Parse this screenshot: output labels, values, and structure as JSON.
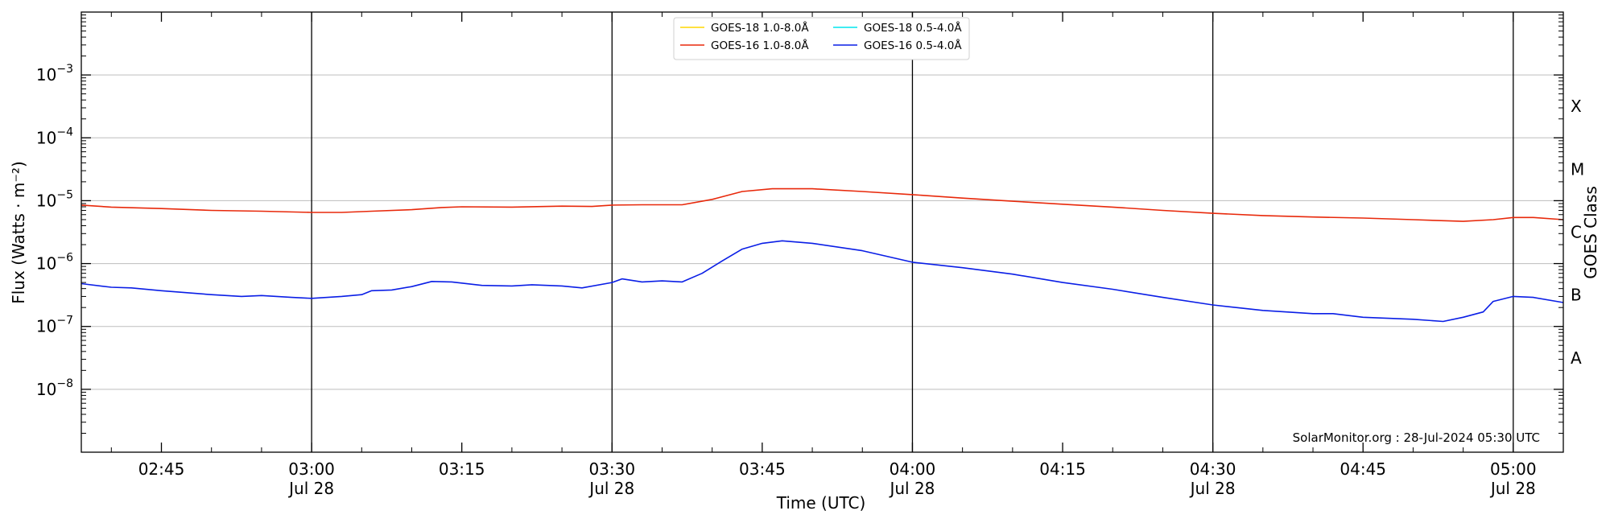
{
  "chart_data": {
    "type": "line",
    "xlabel": "Time (UTC)",
    "ylabel": "Flux (Watts · m⁻²)",
    "y2label": "GOES Class",
    "yscale": "log",
    "xlim": [
      "2024-07-28T02:37",
      "2024-07-28T05:05"
    ],
    "ylim": [
      1e-09,
      0.01
    ],
    "grid": "horizontal at decades; vertical at half hours",
    "legend_position": "top-center",
    "credit": "SolarMonitor.org : 28-Jul-2024 05:30 UTC",
    "x_ticks": [
      {
        "time": "02:45",
        "label": "02:45",
        "sub": ""
      },
      {
        "time": "03:00",
        "label": "03:00",
        "sub": "Jul 28"
      },
      {
        "time": "03:15",
        "label": "03:15",
        "sub": ""
      },
      {
        "time": "03:30",
        "label": "03:30",
        "sub": "Jul 28"
      },
      {
        "time": "03:45",
        "label": "03:45",
        "sub": ""
      },
      {
        "time": "04:00",
        "label": "04:00",
        "sub": "Jul 28"
      },
      {
        "time": "04:15",
        "label": "04:15",
        "sub": ""
      },
      {
        "time": "04:30",
        "label": "04:30",
        "sub": "Jul 28"
      },
      {
        "time": "04:45",
        "label": "04:45",
        "sub": ""
      },
      {
        "time": "05:00",
        "label": "05:00",
        "sub": "Jul 28"
      }
    ],
    "y_ticks": [
      {
        "value": 1e-08,
        "mantissa": "10",
        "exponent": "−8"
      },
      {
        "value": 1e-07,
        "mantissa": "10",
        "exponent": "−7"
      },
      {
        "value": 1e-06,
        "mantissa": "10",
        "exponent": "−6"
      },
      {
        "value": 1e-05,
        "mantissa": "10",
        "exponent": "−5"
      },
      {
        "value": 0.0001,
        "mantissa": "10",
        "exponent": "−4"
      },
      {
        "value": 0.001,
        "mantissa": "10",
        "exponent": "−3"
      }
    ],
    "goes_classes": [
      {
        "label": "A",
        "value": 3.16e-08
      },
      {
        "label": "B",
        "value": 3.16e-07
      },
      {
        "label": "C",
        "value": 3.16e-06
      },
      {
        "label": "M",
        "value": 3.16e-05
      },
      {
        "label": "X",
        "value": 0.000316
      }
    ],
    "series": [
      {
        "name": "GOES-18 1.0-8.0Å",
        "color": "#ffd700",
        "points": []
      },
      {
        "name": "GOES-18 0.5-4.0Å",
        "color": "#00e5ee",
        "points": []
      },
      {
        "name": "GOES-16 1.0-8.0Å",
        "color": "#e8290b",
        "points": [
          [
            "02:37",
            8.5e-06
          ],
          [
            "02:40",
            7.9e-06
          ],
          [
            "02:45",
            7.5e-06
          ],
          [
            "02:50",
            7e-06
          ],
          [
            "02:55",
            6.8e-06
          ],
          [
            "03:00",
            6.5e-06
          ],
          [
            "03:03",
            6.5e-06
          ],
          [
            "03:06",
            6.8e-06
          ],
          [
            "03:10",
            7.2e-06
          ],
          [
            "03:13",
            7.8e-06
          ],
          [
            "03:15",
            8e-06
          ],
          [
            "03:20",
            7.9e-06
          ],
          [
            "03:25",
            8.2e-06
          ],
          [
            "03:28",
            8.1e-06
          ],
          [
            "03:30",
            8.5e-06
          ],
          [
            "03:33",
            8.6e-06
          ],
          [
            "03:37",
            8.6e-06
          ],
          [
            "03:40",
            1.05e-05
          ],
          [
            "03:43",
            1.4e-05
          ],
          [
            "03:46",
            1.55e-05
          ],
          [
            "03:50",
            1.55e-05
          ],
          [
            "03:55",
            1.4e-05
          ],
          [
            "04:00",
            1.25e-05
          ],
          [
            "04:05",
            1.1e-05
          ],
          [
            "04:10",
            9.8e-06
          ],
          [
            "04:15",
            8.8e-06
          ],
          [
            "04:20",
            7.9e-06
          ],
          [
            "04:25",
            7e-06
          ],
          [
            "04:30",
            6.3e-06
          ],
          [
            "04:35",
            5.8e-06
          ],
          [
            "04:40",
            5.5e-06
          ],
          [
            "04:45",
            5.3e-06
          ],
          [
            "04:50",
            5e-06
          ],
          [
            "04:55",
            4.7e-06
          ],
          [
            "04:58",
            5e-06
          ],
          [
            "05:00",
            5.4e-06
          ],
          [
            "05:02",
            5.4e-06
          ],
          [
            "05:05",
            5e-06
          ]
        ]
      },
      {
        "name": "GOES-16 0.5-4.0Å",
        "color": "#0a1ee6",
        "points": [
          [
            "02:37",
            4.8e-07
          ],
          [
            "02:40",
            4.2e-07
          ],
          [
            "02:42",
            4.1e-07
          ],
          [
            "02:45",
            3.7e-07
          ],
          [
            "02:50",
            3.2e-07
          ],
          [
            "02:53",
            3e-07
          ],
          [
            "02:55",
            3.1e-07
          ],
          [
            "02:58",
            2.9e-07
          ],
          [
            "03:00",
            2.8e-07
          ],
          [
            "03:03",
            3e-07
          ],
          [
            "03:05",
            3.2e-07
          ],
          [
            "03:06",
            3.7e-07
          ],
          [
            "03:08",
            3.8e-07
          ],
          [
            "03:10",
            4.3e-07
          ],
          [
            "03:12",
            5.2e-07
          ],
          [
            "03:14",
            5.1e-07
          ],
          [
            "03:17",
            4.5e-07
          ],
          [
            "03:20",
            4.4e-07
          ],
          [
            "03:22",
            4.6e-07
          ],
          [
            "03:25",
            4.4e-07
          ],
          [
            "03:27",
            4.1e-07
          ],
          [
            "03:30",
            5e-07
          ],
          [
            "03:31",
            5.7e-07
          ],
          [
            "03:33",
            5.1e-07
          ],
          [
            "03:35",
            5.3e-07
          ],
          [
            "03:37",
            5.1e-07
          ],
          [
            "03:39",
            7e-07
          ],
          [
            "03:41",
            1.1e-06
          ],
          [
            "03:43",
            1.7e-06
          ],
          [
            "03:45",
            2.1e-06
          ],
          [
            "03:47",
            2.3e-06
          ],
          [
            "03:50",
            2.1e-06
          ],
          [
            "03:55",
            1.6e-06
          ],
          [
            "04:00",
            1.05e-06
          ],
          [
            "04:05",
            8.6e-07
          ],
          [
            "04:10",
            6.8e-07
          ],
          [
            "04:15",
            5e-07
          ],
          [
            "04:20",
            3.9e-07
          ],
          [
            "04:25",
            2.9e-07
          ],
          [
            "04:30",
            2.2e-07
          ],
          [
            "04:35",
            1.8e-07
          ],
          [
            "04:40",
            1.6e-07
          ],
          [
            "04:42",
            1.6e-07
          ],
          [
            "04:45",
            1.4e-07
          ],
          [
            "04:50",
            1.3e-07
          ],
          [
            "04:53",
            1.2e-07
          ],
          [
            "04:55",
            1.4e-07
          ],
          [
            "04:57",
            1.7e-07
          ],
          [
            "04:58",
            2.5e-07
          ],
          [
            "05:00",
            3e-07
          ],
          [
            "05:02",
            2.9e-07
          ],
          [
            "05:05",
            2.4e-07
          ]
        ]
      }
    ]
  }
}
